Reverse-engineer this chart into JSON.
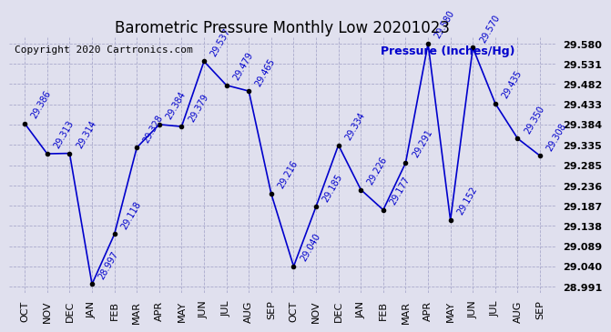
{
  "title": "Barometric Pressure Monthly Low 20201023",
  "ylabel": "Pressure (Inches/Hg)",
  "copyright": "Copyright 2020 Cartronics.com",
  "x_labels": [
    "OCT",
    "NOV",
    "DEC",
    "JAN",
    "FEB",
    "MAR",
    "APR",
    "MAY",
    "JUN",
    "JUL",
    "AUG",
    "SEP",
    "OCT",
    "NOV",
    "DEC",
    "JAN",
    "FEB",
    "MAR",
    "APR",
    "MAY",
    "JUN",
    "JUL",
    "AUG",
    "SEP"
  ],
  "y_values": [
    29.386,
    29.313,
    29.314,
    28.997,
    29.118,
    29.328,
    29.384,
    29.379,
    29.537,
    29.479,
    29.465,
    29.216,
    29.04,
    29.185,
    29.334,
    29.226,
    29.177,
    29.291,
    29.58,
    29.152,
    29.57,
    29.435,
    29.35,
    29.308
  ],
  "yticks": [
    28.991,
    29.04,
    29.089,
    29.138,
    29.187,
    29.236,
    29.285,
    29.335,
    29.384,
    29.433,
    29.482,
    29.531,
    29.58
  ],
  "ylim_min": 28.975,
  "ylim_max": 29.595,
  "line_color": "#0000CC",
  "marker_color": "#000000",
  "label_color": "#0000CC",
  "bg_color": "#E0E0EE",
  "grid_color": "#AAAACC",
  "title_fontsize": 12,
  "label_fontsize": 7,
  "tick_fontsize": 8,
  "copyright_fontsize": 8
}
